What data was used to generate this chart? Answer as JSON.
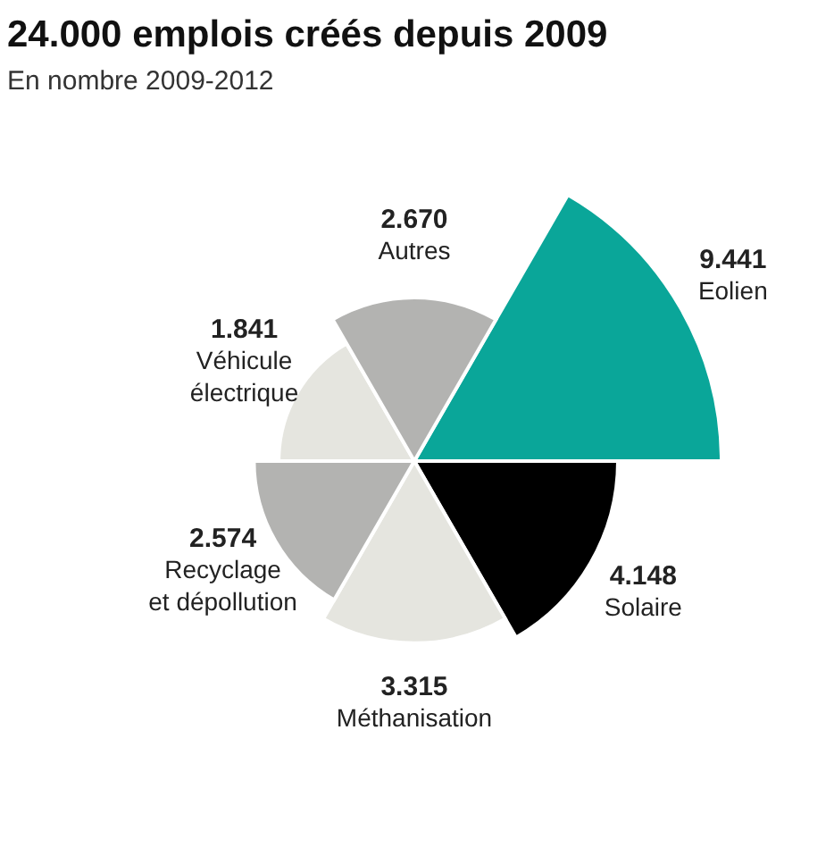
{
  "chart_data": {
    "type": "other",
    "title": "24.000 emplois créés depuis 2009",
    "subtitle": "En nombre 2009-2012",
    "categories": [
      "Eolien",
      "Solaire",
      "Méthanisation",
      "Recyclage et dépollution",
      "Véhicule électrique",
      "Autres"
    ],
    "values": [
      9441,
      4148,
      3315,
      2574,
      1841,
      2670
    ],
    "colors": [
      "#0aa699",
      "#000000",
      "#e5e5df",
      "#b3b3b1",
      "#e5e5df",
      "#b3b3b1"
    ],
    "value_labels": [
      "9.441",
      "4.148",
      "3.315",
      "2.574",
      "1.841",
      "2.670"
    ]
  }
}
